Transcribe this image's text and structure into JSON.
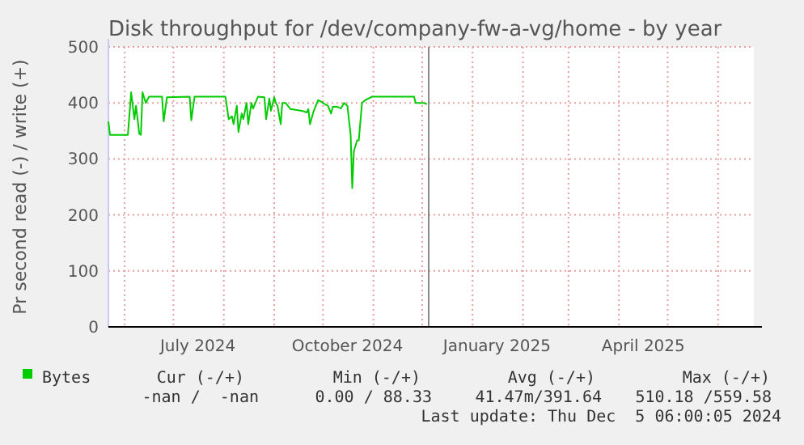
{
  "chart_data": {
    "type": "line",
    "title": "Disk throughput for /dev/company-fw-a-vg/home - by year",
    "ylabel": "Pr second read (-) / write (+)",
    "x": [
      "2024-05-22",
      "2024-05-23",
      "2024-06-03",
      "2024-06-05",
      "2024-06-07",
      "2024-06-08",
      "2024-06-10",
      "2024-06-11",
      "2024-06-12",
      "2024-06-14",
      "2024-06-16",
      "2024-06-24",
      "2024-06-25",
      "2024-06-27",
      "2024-07-11",
      "2024-07-12",
      "2024-07-14",
      "2024-08-02",
      "2024-08-04",
      "2024-08-06",
      "2024-08-07",
      "2024-08-09",
      "2024-08-10",
      "2024-08-12",
      "2024-08-13",
      "2024-08-15",
      "2024-08-16",
      "2024-08-18",
      "2024-08-19",
      "2024-08-22",
      "2024-08-26",
      "2024-08-27",
      "2024-08-29",
      "2024-08-30",
      "2024-09-01",
      "2024-09-02",
      "2024-09-03",
      "2024-09-05",
      "2024-09-06",
      "2024-09-08",
      "2024-09-11",
      "2024-09-18",
      "2024-09-21",
      "2024-09-22",
      "2024-09-23",
      "2024-09-25",
      "2024-09-28",
      "2024-09-30",
      "2024-10-02",
      "2024-10-04",
      "2024-10-06",
      "2024-10-07",
      "2024-10-10",
      "2024-10-12",
      "2024-10-14",
      "2024-10-16",
      "2024-10-18",
      "2024-10-19",
      "2024-10-20",
      "2024-10-22",
      "2024-10-23",
      "2024-10-25",
      "2024-10-27",
      "2024-10-31",
      "2024-11-26",
      "2024-11-27",
      "2024-12-02",
      "2024-12-04"
    ],
    "series": [
      {
        "name": "Bytes",
        "color": "#00cc00",
        "values": [
          367,
          343,
          343,
          419,
          371,
          395,
          345,
          343,
          419,
          400,
          411,
          411,
          367,
          410,
          411,
          369,
          411,
          411,
          371,
          376,
          362,
          395,
          348,
          381,
          371,
          400,
          362,
          400,
          390,
          411,
          410,
          371,
          408,
          386,
          410,
          400,
          395,
          362,
          400,
          400,
          389,
          386,
          383,
          389,
          362,
          383,
          405,
          402,
          398,
          395,
          381,
          393,
          393,
          390,
          400,
          395,
          343,
          248,
          314,
          333,
          333,
          400,
          405,
          411,
          411,
          400,
          400,
          398
        ]
      }
    ],
    "xlim": [
      "2024-05-22",
      "2025-06-23"
    ],
    "xticks": [
      {
        "value": "2024-06-01",
        "label": null
      },
      {
        "value": "2024-07-01",
        "label": null
      },
      {
        "value": "2024-07-16",
        "label": "July 2024"
      },
      {
        "value": "2024-08-01",
        "label": null
      },
      {
        "value": "2024-09-01",
        "label": null
      },
      {
        "value": "2024-10-01",
        "label": null
      },
      {
        "value": "2024-10-16",
        "label": "October 2024"
      },
      {
        "value": "2024-11-01",
        "label": null
      },
      {
        "value": "2024-12-01",
        "label": null
      },
      {
        "value": "2025-01-01",
        "label": null
      },
      {
        "value": "2025-01-16",
        "label": "January 2025"
      },
      {
        "value": "2025-02-01",
        "label": null
      },
      {
        "value": "2025-03-01",
        "label": null
      },
      {
        "value": "2025-04-01",
        "label": null
      },
      {
        "value": "2025-04-16",
        "label": "April 2025"
      },
      {
        "value": "2025-05-01",
        "label": null
      },
      {
        "value": "2025-06-01",
        "label": null
      }
    ],
    "ylim": [
      0,
      500
    ],
    "yticks": [
      0,
      100,
      200,
      300,
      400,
      500
    ],
    "grid": true,
    "legend": "bottom left",
    "ref_lines": [
      {
        "axis": "x",
        "value": "2024-12-05",
        "color": "#888888"
      }
    ],
    "annotations": [
      "Cur (-/+)",
      "Min (-/+)",
      "Avg (-/+)",
      "Max (-/+)",
      "-nan /  -nan",
      "0.00 / 88.33",
      "41.47m/391.64",
      "510.18 /559.58",
      "Last update: Thu Dec  5 06:00:05 2024"
    ]
  }
}
